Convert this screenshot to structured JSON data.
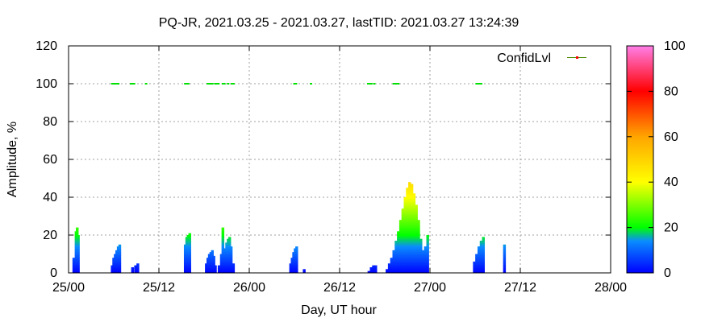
{
  "chart_data": {
    "type": "area",
    "title": "PQ-JR, 2021.03.25 - 2021.03.27, lastTID: 2021.03.27 13:24:39",
    "xlabel": "Day, UT hour",
    "ylabel": "Amplitude, %",
    "ylim": [
      0,
      120
    ],
    "xlim": [
      0,
      72
    ],
    "x_ticks": [
      0,
      12,
      24,
      36,
      48,
      60,
      72
    ],
    "x_tick_labels": [
      "25/00",
      "25/12",
      "26/00",
      "26/12",
      "27/00",
      "27/12",
      "28/00"
    ],
    "y_ticks": [
      0,
      20,
      40,
      60,
      80,
      100,
      120
    ],
    "grid": true,
    "legend": {
      "placement": "top-right",
      "label": "ConfidLvl"
    },
    "colorbar": {
      "min": 0,
      "max": 100,
      "ticks": [
        0,
        20,
        40,
        60,
        80,
        100
      ]
    },
    "amplitude_bars": [
      {
        "x": 0.7,
        "y": 8
      },
      {
        "x": 1.0,
        "y": 22
      },
      {
        "x": 1.15,
        "y": 24
      },
      {
        "x": 1.3,
        "y": 20
      },
      {
        "x": 5.8,
        "y": 4
      },
      {
        "x": 6.0,
        "y": 8
      },
      {
        "x": 6.2,
        "y": 10
      },
      {
        "x": 6.4,
        "y": 12
      },
      {
        "x": 6.6,
        "y": 14
      },
      {
        "x": 6.8,
        "y": 15
      },
      {
        "x": 8.5,
        "y": 3
      },
      {
        "x": 8.9,
        "y": 4
      },
      {
        "x": 9.2,
        "y": 5
      },
      {
        "x": 15.5,
        "y": 15
      },
      {
        "x": 15.7,
        "y": 19
      },
      {
        "x": 15.9,
        "y": 20
      },
      {
        "x": 16.1,
        "y": 21
      },
      {
        "x": 18.3,
        "y": 5
      },
      {
        "x": 18.5,
        "y": 8
      },
      {
        "x": 18.7,
        "y": 10
      },
      {
        "x": 18.9,
        "y": 11
      },
      {
        "x": 19.1,
        "y": 12
      },
      {
        "x": 19.3,
        "y": 9
      },
      {
        "x": 19.5,
        "y": 4
      },
      {
        "x": 20.0,
        "y": 4
      },
      {
        "x": 20.3,
        "y": 10
      },
      {
        "x": 20.5,
        "y": 24
      },
      {
        "x": 20.7,
        "y": 13
      },
      {
        "x": 21.0,
        "y": 16
      },
      {
        "x": 21.2,
        "y": 18
      },
      {
        "x": 21.4,
        "y": 19
      },
      {
        "x": 21.6,
        "y": 14
      },
      {
        "x": 21.9,
        "y": 5
      },
      {
        "x": 29.5,
        "y": 5
      },
      {
        "x": 29.7,
        "y": 8
      },
      {
        "x": 29.9,
        "y": 11
      },
      {
        "x": 30.1,
        "y": 13
      },
      {
        "x": 30.3,
        "y": 14
      },
      {
        "x": 31.3,
        "y": 2
      },
      {
        "x": 39.9,
        "y": 1
      },
      {
        "x": 40.2,
        "y": 3
      },
      {
        "x": 40.5,
        "y": 4
      },
      {
        "x": 40.8,
        "y": 4
      },
      {
        "x": 42.3,
        "y": 2
      },
      {
        "x": 42.6,
        "y": 5
      },
      {
        "x": 42.9,
        "y": 8
      },
      {
        "x": 43.2,
        "y": 12
      },
      {
        "x": 43.5,
        "y": 17
      },
      {
        "x": 43.8,
        "y": 22
      },
      {
        "x": 44.1,
        "y": 28
      },
      {
        "x": 44.4,
        "y": 34
      },
      {
        "x": 44.7,
        "y": 40
      },
      {
        "x": 45.0,
        "y": 45
      },
      {
        "x": 45.3,
        "y": 48
      },
      {
        "x": 45.6,
        "y": 47
      },
      {
        "x": 45.9,
        "y": 42
      },
      {
        "x": 46.2,
        "y": 36
      },
      {
        "x": 46.5,
        "y": 28
      },
      {
        "x": 46.8,
        "y": 18
      },
      {
        "x": 47.1,
        "y": 12
      },
      {
        "x": 47.4,
        "y": 14
      },
      {
        "x": 47.7,
        "y": 20
      },
      {
        "x": 53.9,
        "y": 6
      },
      {
        "x": 54.2,
        "y": 10
      },
      {
        "x": 54.5,
        "y": 14
      },
      {
        "x": 54.8,
        "y": 17
      },
      {
        "x": 55.1,
        "y": 19
      },
      {
        "x": 57.9,
        "y": 15
      }
    ],
    "confidence_points_x": [
      5.8,
      6.0,
      6.2,
      6.4,
      6.6,
      8.3,
      8.5,
      8.7,
      10.3,
      15.5,
      15.7,
      15.9,
      18.5,
      18.7,
      18.9,
      19.1,
      19.5,
      19.7,
      19.9,
      20.5,
      20.7,
      21.2,
      21.7,
      21.9,
      30.0,
      30.2,
      32.2,
      39.8,
      40.0,
      40.2,
      40.6,
      43.2,
      43.4,
      43.6,
      43.8,
      54.2,
      54.4,
      54.6,
      54.8
    ],
    "confidence_value": 100,
    "legend_point_color": "#ff0000",
    "legend_line_color": "#4a8a00"
  }
}
